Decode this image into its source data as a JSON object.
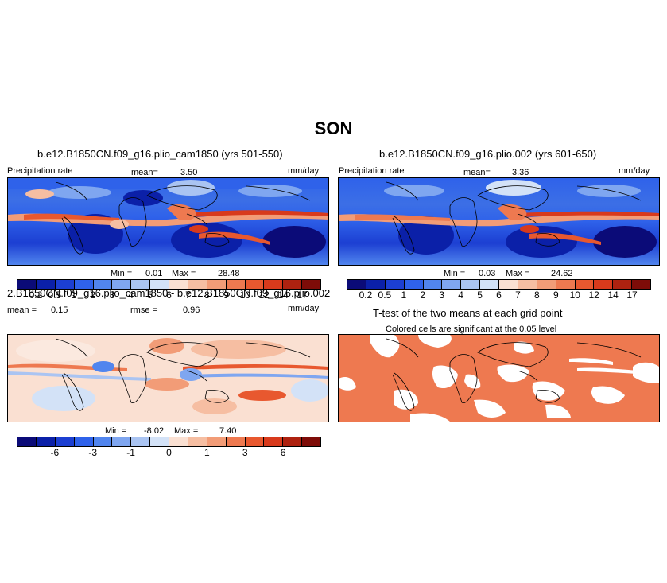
{
  "figure": {
    "title": "SON"
  },
  "panels": {
    "top_left": {
      "title": "b.e12.B1850CN.f09_g16.plio_cam1850 (yrs 501-550)",
      "left_label": "Precipitation rate",
      "mean_label": "mean=",
      "mean_value": "3.50",
      "units": "mm/day",
      "min_label": "Min =",
      "min_value": "0.01",
      "max_label": "Max =",
      "max_value": "28.48"
    },
    "top_right": {
      "title": "b.e12.B1850CN.f09_g16.plio.002 (yrs 601-650)",
      "left_label": "Precipitation rate",
      "mean_label": "mean=",
      "mean_value": "3.36",
      "units": "mm/day",
      "min_label": "Min =",
      "min_value": "0.03",
      "max_label": "Max =",
      "max_value": "24.62"
    },
    "bottom_left": {
      "title": "2.B1850CN.f09_g16.plio_cam1850 - b.e12.B1850CN.f09_g16.plio.002",
      "mean_label": "mean =",
      "mean_value": "0.15",
      "rmse_label": "rmse =",
      "rmse_value": "0.96",
      "units": "mm/day",
      "min_label": "Min =",
      "min_value": "-8.02",
      "max_label": "Max =",
      "max_value": "7.40"
    },
    "bottom_right": {
      "title": "T-test of the two means at each grid point",
      "subtitle": "Colored cells are significant at the 0.05 level"
    }
  },
  "colorbars": {
    "precip": {
      "colors": [
        "#0b0b78",
        "#0b20a8",
        "#1c3fd2",
        "#2f62ea",
        "#5185ee",
        "#7fa6f0",
        "#aac4f2",
        "#d3e2f7",
        "#fae0d2",
        "#f6bea2",
        "#f29c77",
        "#ee7950",
        "#e8582f",
        "#d83a1c",
        "#ae2210",
        "#7e0c08"
      ],
      "labels": [
        "0.2",
        "0.5",
        "1",
        "2",
        "3",
        "4",
        "5",
        "6",
        "7",
        "8",
        "9",
        "10",
        "12",
        "14",
        "17"
      ]
    },
    "diff": {
      "colors": [
        "#0b0b78",
        "#0b20a8",
        "#1c3fd2",
        "#2f62ea",
        "#5185ee",
        "#7fa6f0",
        "#aac4f2",
        "#d3e2f7",
        "#fae0d2",
        "#f6bea2",
        "#f29c77",
        "#ee7950",
        "#e8582f",
        "#d83a1c",
        "#ae2210",
        "#7e0c08"
      ],
      "labels": [
        "-6",
        "-3",
        "-1",
        "0",
        "1",
        "3",
        "6"
      ]
    }
  }
}
